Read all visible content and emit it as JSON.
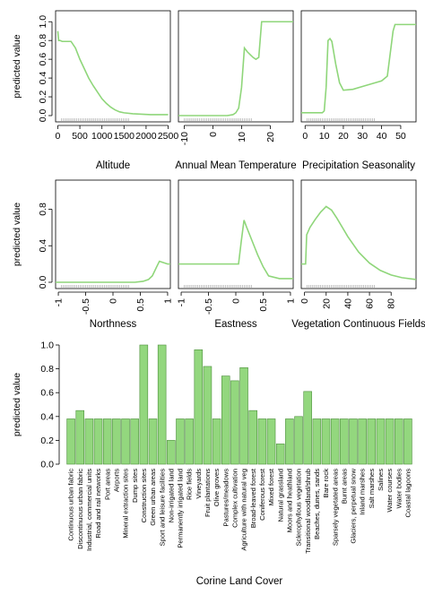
{
  "chart_data": [
    {
      "id": "altitude",
      "type": "line",
      "xlabel": "Altitude",
      "ylabel": "predicted value",
      "xlim": [
        -50,
        2550
      ],
      "ylim": [
        0,
        1.05
      ],
      "xticks": [
        0,
        500,
        1000,
        1500,
        2000,
        2500
      ],
      "yticks": [
        0.0,
        0.2,
        0.4,
        0.6,
        0.8,
        1.0
      ],
      "x": [
        0,
        20,
        50,
        100,
        300,
        400,
        500,
        600,
        700,
        800,
        900,
        1000,
        1100,
        1200,
        1300,
        1400,
        1500,
        1700,
        1900,
        2100,
        2300,
        2500
      ],
      "y": [
        0.9,
        0.8,
        0.8,
        0.79,
        0.79,
        0.72,
        0.6,
        0.5,
        0.4,
        0.32,
        0.25,
        0.18,
        0.13,
        0.09,
        0.06,
        0.04,
        0.03,
        0.02,
        0.015,
        0.01,
        0.01,
        0.01
      ]
    },
    {
      "id": "annual-mean-temperature",
      "type": "line",
      "xlabel": "Annual Mean Temperature",
      "ylabel": "",
      "xlim": [
        -12,
        28
      ],
      "ylim": [
        0,
        1.05
      ],
      "xticks": [
        -10,
        0,
        10,
        20
      ],
      "yticks": [],
      "x": [
        -12,
        -5,
        0,
        5,
        7,
        8,
        9,
        10,
        11,
        12,
        13,
        14,
        15,
        16,
        17,
        18,
        28
      ],
      "y": [
        0.0,
        0.0,
        0.0,
        0.0,
        0.01,
        0.03,
        0.08,
        0.3,
        0.72,
        0.68,
        0.65,
        0.62,
        0.6,
        0.62,
        1.0,
        1.0,
        1.0
      ]
    },
    {
      "id": "precipitation-seasonality",
      "type": "line",
      "xlabel": "Precipitation Seasonality",
      "ylabel": "",
      "xlim": [
        -2,
        58
      ],
      "ylim": [
        0,
        1.05
      ],
      "xticks": [
        0,
        10,
        20,
        30,
        40,
        50
      ],
      "yticks": [],
      "x": [
        -2,
        5,
        9,
        10,
        11,
        12,
        13,
        14,
        16,
        18,
        20,
        25,
        30,
        35,
        40,
        43,
        46,
        47,
        50,
        55,
        58
      ],
      "y": [
        0.03,
        0.03,
        0.03,
        0.05,
        0.3,
        0.8,
        0.82,
        0.79,
        0.55,
        0.35,
        0.27,
        0.28,
        0.31,
        0.34,
        0.37,
        0.42,
        0.9,
        0.97,
        0.97,
        0.97,
        0.97
      ]
    },
    {
      "id": "northness",
      "type": "line",
      "xlabel": "Northness",
      "ylabel": "predicted value",
      "xlim": [
        -1.05,
        1.05
      ],
      "ylim": [
        0,
        1.05
      ],
      "xticks": [
        -1.0,
        -0.5,
        0.0,
        0.5,
        1.0
      ],
      "yticks": [
        0.0,
        0.4,
        0.8
      ],
      "x": [
        -1.05,
        -0.5,
        0.0,
        0.4,
        0.55,
        0.65,
        0.72,
        0.8,
        0.85,
        1.0,
        1.05
      ],
      "y": [
        0.0,
        0.0,
        0.0,
        0.0,
        0.01,
        0.03,
        0.07,
        0.17,
        0.23,
        0.2,
        0.2
      ]
    },
    {
      "id": "eastness",
      "type": "line",
      "xlabel": "Eastness",
      "ylabel": "",
      "xlim": [
        -1.05,
        1.05
      ],
      "ylim": [
        0,
        1.05
      ],
      "xticks": [
        -1.0,
        -0.5,
        0.0,
        0.5,
        1.0
      ],
      "yticks": [],
      "x": [
        -1.05,
        -0.5,
        0.0,
        0.05,
        0.1,
        0.15,
        0.2,
        0.3,
        0.4,
        0.5,
        0.6,
        0.8,
        1.05
      ],
      "y": [
        0.2,
        0.2,
        0.2,
        0.2,
        0.45,
        0.68,
        0.6,
        0.45,
        0.3,
        0.17,
        0.07,
        0.04,
        0.04
      ]
    },
    {
      "id": "vegetation-continuous-fields",
      "type": "line",
      "xlabel": "Vegetation Continuous Fields",
      "ylabel": "",
      "xlim": [
        -3,
        103
      ],
      "ylim": [
        0,
        1.05
      ],
      "xticks": [
        0,
        20,
        40,
        60,
        80
      ],
      "yticks": [],
      "x": [
        -3,
        1,
        2,
        5,
        10,
        15,
        20,
        25,
        30,
        40,
        50,
        60,
        70,
        80,
        90,
        103
      ],
      "y": [
        0.2,
        0.2,
        0.52,
        0.6,
        0.69,
        0.77,
        0.83,
        0.79,
        0.7,
        0.5,
        0.33,
        0.21,
        0.13,
        0.08,
        0.05,
        0.03
      ]
    },
    {
      "id": "corine-land-cover",
      "type": "bar",
      "xlabel": "Corine Land Cover",
      "ylabel": "predicted value",
      "ylim": [
        0,
        1.0
      ],
      "yticks": [
        0.0,
        0.2,
        0.4,
        0.6,
        0.8,
        1.0
      ],
      "categories": [
        "Continuous urban fabric",
        "Discontinuous urban fabric",
        "Industrial, commercial units",
        "Road and rail networks",
        "Port areas",
        "Airports",
        "Mineral extraction sites",
        "Dump sites",
        "Construction sites",
        "Green urban areas",
        "Sport and leisure facilities",
        "Non-irrigated land",
        "Permanently irrigated land",
        "Rice fields",
        "Vineyards",
        "Fruit plantations",
        "Olive groves",
        "Pastures/meadows",
        "Complex cultivation",
        "Agriculture with natural veg",
        "Broad-leaved forest",
        "Coniferous forest",
        "Mixed forest",
        "Natural grassland",
        "Moors and heathland",
        "Sclerophyllous vegetation",
        "Transitional woodland/shrub",
        "Beaches, dunes, sands",
        "Bare rock",
        "Sparsely vegetated areas",
        "Burnt areas",
        "Glaciers, perpetual snow",
        "Inland marshes",
        "Salt marshes",
        "Salines",
        "Water courses",
        "Water bodies",
        "Coastal lagoons"
      ],
      "values": [
        0.38,
        0.45,
        0.38,
        0.38,
        0.38,
        0.38,
        0.38,
        0.38,
        1.0,
        0.38,
        1.0,
        0.2,
        0.38,
        0.38,
        0.96,
        0.82,
        0.38,
        0.74,
        0.7,
        0.81,
        0.45,
        0.38,
        0.38,
        0.17,
        0.38,
        0.4,
        0.61,
        0.38,
        0.38,
        0.38,
        0.38,
        0.38,
        0.38,
        0.38,
        0.38,
        0.38,
        0.38,
        0.38
      ]
    }
  ]
}
